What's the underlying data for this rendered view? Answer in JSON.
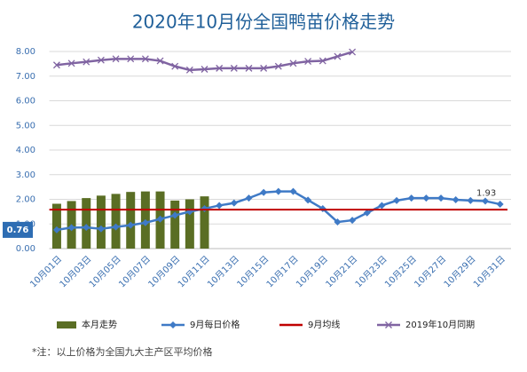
{
  "chart_data": {
    "type": "bar",
    "title": "2020年10月份全国鸭苗价格走势",
    "note": "*注：以上价格为全国九大主产区平均价格",
    "categories": [
      "10月01日",
      null,
      "10月03日",
      null,
      "10月05日",
      null,
      "10月07日",
      null,
      "10月09日",
      null,
      "10月11日",
      null,
      "10月13日",
      null,
      "10月15日",
      null,
      "10月17日",
      null,
      "10月19日",
      null,
      "10月21日",
      null,
      "10月23日",
      null,
      "10月25日",
      null,
      "10月27日",
      null,
      "10月29日",
      null,
      "10月31日"
    ],
    "ylim": [
      0,
      8
    ],
    "yticks": [
      {
        "value": 0,
        "label": "0.00"
      },
      {
        "value": 1,
        "label": "1.00"
      },
      {
        "value": 2,
        "label": "2.00"
      },
      {
        "value": 3,
        "label": "3.00"
      },
      {
        "value": 4,
        "label": "4.00"
      },
      {
        "value": 5,
        "label": "5.00"
      },
      {
        "value": 6,
        "label": "6.00"
      },
      {
        "value": 7,
        "label": "7.00"
      },
      {
        "value": 8,
        "label": "8.00"
      }
    ],
    "grid": true,
    "legend": "bottom",
    "series": [
      {
        "name": "本月走势",
        "type": "bar",
        "color": "#5a6e24",
        "values": [
          1.82,
          1.93,
          2.05,
          2.15,
          2.22,
          2.3,
          2.32,
          2.32,
          1.95,
          2.0,
          2.12,
          null,
          null,
          null,
          null,
          null,
          null,
          null,
          null,
          null,
          null,
          null,
          null,
          null,
          null,
          null,
          null,
          null,
          null,
          null,
          null
        ]
      },
      {
        "name": "9月每日价格",
        "type": "line",
        "marker": "diamond",
        "color": "#3f7ac6",
        "values": [
          0.76,
          0.85,
          0.86,
          0.8,
          0.88,
          0.95,
          1.05,
          1.2,
          1.35,
          1.5,
          1.62,
          1.75,
          1.85,
          2.05,
          2.28,
          2.32,
          2.32,
          1.97,
          1.62,
          1.08,
          1.15,
          1.45,
          1.75,
          1.95,
          2.05,
          2.05,
          2.05,
          1.98,
          1.95,
          1.93,
          1.8
        ]
      },
      {
        "name": "9月均线",
        "type": "hline",
        "color": "#c00000",
        "value": 1.58
      },
      {
        "name": "2019年10月同期",
        "type": "line",
        "marker": "x",
        "color": "#8064a2",
        "values": [
          7.45,
          7.52,
          7.58,
          7.65,
          7.7,
          7.7,
          7.7,
          7.62,
          7.4,
          7.25,
          7.28,
          7.32,
          7.32,
          7.32,
          7.32,
          7.4,
          7.52,
          7.6,
          7.62,
          7.8,
          7.98,
          null,
          null,
          null,
          null,
          null,
          null,
          null,
          null,
          null,
          null
        ]
      }
    ]
  }
}
